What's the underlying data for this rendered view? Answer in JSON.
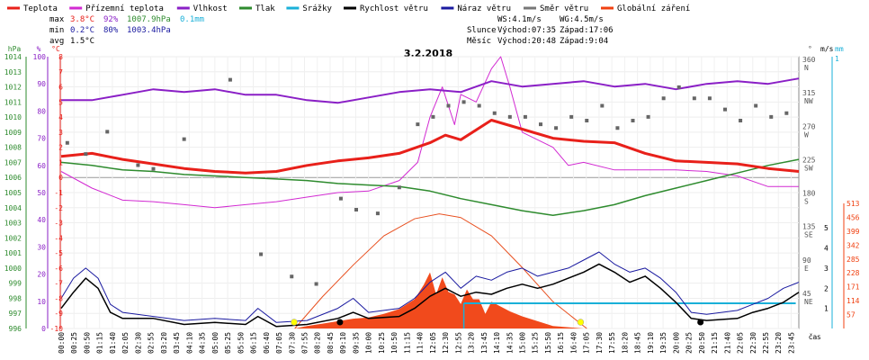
{
  "chart_data": {
    "type": "line",
    "title": "3.2.2018",
    "legend": [
      {
        "name": "Teplota",
        "color": "#e8201a"
      },
      {
        "name": "Přízemní teplota",
        "color": "#d22ad2"
      },
      {
        "name": "Vlhkost",
        "color": "#8a1fc6"
      },
      {
        "name": "Tlak",
        "color": "#2e8b2e"
      },
      {
        "name": "Srážky",
        "color": "#1ab0d8"
      },
      {
        "name": "Rychlost větru",
        "color": "#000000"
      },
      {
        "name": "Náraz větru",
        "color": "#1a1aa0"
      },
      {
        "name": "Směr větru",
        "color": "#777777"
      },
      {
        "name": "Globální záření",
        "color": "#f04010"
      }
    ],
    "stats": {
      "max": {
        "label": "max",
        "temp": "3.8°C",
        "hum": "92%",
        "press": "1007.9hPa",
        "rain": "0.1mm"
      },
      "min": {
        "label": "min",
        "temp": "0.2°C",
        "hum": "80%",
        "press": "1003.4hPa"
      },
      "avg": {
        "label": "avg",
        "temp": "1.5°C"
      }
    },
    "info": {
      "ws": "WS:4.1m/s",
      "wg": "WG:4.5m/s",
      "sun_label": "Slunce",
      "sun_rise": "Východ:07:35",
      "sun_set": "Západ:17:06",
      "moon_label": "Měsíc",
      "moon_rise": "Východ:20:48",
      "moon_set": "Západ:9:04"
    },
    "axes_left": [
      {
        "unit": "hPa",
        "color": "#2e8b2e",
        "ticks": [
          "1014",
          "1013",
          "1012",
          "1011",
          "1010",
          "1009",
          "1008",
          "1007",
          "1006",
          "1005",
          "1004",
          "1003",
          "1002",
          "1001",
          "1000",
          "999",
          "998",
          "997",
          "996"
        ]
      },
      {
        "unit": "%",
        "color": "#8a1fc6",
        "ticks": [
          "100",
          "90",
          "80",
          "70",
          "60",
          "50",
          "40",
          "30",
          "20",
          "10",
          "0"
        ]
      },
      {
        "unit": "°C",
        "color": "#e8201a",
        "ticks": [
          "8",
          "7",
          "6",
          "5",
          "4",
          "3",
          "2",
          "1",
          "0",
          "-1",
          "-2",
          "-3",
          "-4",
          "-5",
          "-6",
          "-7",
          "-8",
          "-9",
          "-10"
        ]
      }
    ],
    "axes_right": [
      {
        "unit": "°",
        "color": "#555555",
        "ticks": [
          "360",
          "315",
          "270",
          "225",
          "180",
          "135",
          "90",
          "45"
        ],
        "dir_labels": [
          "N",
          "NW",
          "W",
          "SW",
          "S",
          "SE",
          "E",
          "NE"
        ]
      },
      {
        "unit": "m/s",
        "color": "#000000",
        "ticks": [
          "5",
          "4",
          "3",
          "2",
          "1"
        ]
      },
      {
        "unit": "mm",
        "color": "#1ab0d8",
        "ticks": [
          "1"
        ]
      },
      {
        "unit": "W/m²",
        "color": "#f04010",
        "ticks": [
          "513",
          "456",
          "399",
          "342",
          "285",
          "228",
          "171",
          "114",
          "57"
        ]
      }
    ],
    "x_ticks": [
      "00:00",
      "00:25",
      "00:50",
      "01:15",
      "01:40",
      "02:05",
      "02:30",
      "02:55",
      "03:20",
      "03:45",
      "04:10",
      "04:35",
      "05:00",
      "05:25",
      "05:50",
      "06:15",
      "06:40",
      "07:05",
      "07:30",
      "07:55",
      "08:20",
      "08:45",
      "09:10",
      "09:35",
      "10:00",
      "10:25",
      "10:50",
      "11:15",
      "11:40",
      "12:05",
      "12:30",
      "12:55",
      "13:20",
      "13:45",
      "14:10",
      "14:35",
      "15:00",
      "15:25",
      "15:50",
      "16:15",
      "16:40",
      "17:05",
      "17:30",
      "17:55",
      "18:20",
      "18:45",
      "19:10",
      "19:35",
      "20:00",
      "20:25",
      "20:50",
      "21:15",
      "21:40",
      "22:05",
      "22:30",
      "22:55",
      "23:20",
      "23:45"
    ],
    "x_label": "čas",
    "series": {
      "temperature": {
        "hours": [
          0,
          1,
          2,
          3,
          4,
          5,
          6,
          7,
          8,
          9,
          10,
          11,
          12,
          12.5,
          13,
          14,
          15,
          16,
          17,
          18,
          19,
          20,
          21,
          22,
          23,
          24
        ],
        "values": [
          1.4,
          1.6,
          1.2,
          0.9,
          0.6,
          0.4,
          0.3,
          0.4,
          0.8,
          1.1,
          1.3,
          1.6,
          2.3,
          2.8,
          2.5,
          3.8,
          3.2,
          2.6,
          2.4,
          2.3,
          1.6,
          1.1,
          1.0,
          0.9,
          0.6,
          0.4
        ]
      },
      "humidity": {
        "hours": [
          0,
          1,
          2,
          3,
          4,
          5,
          6,
          7,
          8,
          9,
          10,
          11,
          12,
          13,
          14,
          15,
          16,
          17,
          18,
          19,
          20,
          21,
          22,
          23,
          24
        ],
        "values": [
          84,
          84,
          86,
          88,
          87,
          88,
          86,
          86,
          84,
          83,
          85,
          87,
          88,
          87,
          91,
          89,
          90,
          91,
          89,
          90,
          88,
          90,
          91,
          90,
          92
        ]
      },
      "pressure": {
        "hours": [
          0,
          1,
          2,
          3,
          4,
          5,
          6,
          7,
          8,
          9,
          10,
          11,
          12,
          13,
          14,
          15,
          16,
          17,
          18,
          19,
          20,
          21,
          22,
          23,
          24
        ],
        "values": [
          1007.0,
          1006.8,
          1006.5,
          1006.4,
          1006.2,
          1006.1,
          1006.0,
          1005.9,
          1005.8,
          1005.6,
          1005.5,
          1005.4,
          1005.1,
          1004.6,
          1004.2,
          1003.8,
          1003.5,
          1003.8,
          1004.2,
          1004.8,
          1005.3,
          1005.8,
          1006.3,
          1006.8,
          1007.2
        ]
      },
      "ground_temperature": {
        "hours": [
          0,
          1,
          2,
          3,
          4,
          5,
          6,
          7,
          8,
          9,
          10,
          11,
          11.6,
          12,
          12.4,
          12.8,
          13,
          13.5,
          14,
          14.3,
          14.6,
          15,
          16,
          16.5,
          17,
          18,
          19,
          20,
          21,
          22,
          23,
          24
        ],
        "values": [
          0.4,
          -0.7,
          -1.5,
          -1.6,
          -1.8,
          -2.0,
          -1.8,
          -1.6,
          -1.3,
          -1.0,
          -0.9,
          -0.2,
          1.0,
          4.0,
          6.0,
          3.5,
          5.5,
          5.0,
          7.2,
          8.0,
          6.0,
          3.0,
          2.0,
          0.8,
          1.0,
          0.5,
          0.5,
          0.5,
          0.4,
          0.1,
          -0.6,
          -0.6
        ]
      },
      "wind_speed": {
        "hours": [
          0,
          0.4,
          0.8,
          1.2,
          1.6,
          2,
          3,
          4,
          5,
          6,
          6.4,
          7,
          8,
          9,
          9.5,
          10,
          11,
          11.5,
          12,
          12.5,
          13,
          13.5,
          14,
          14.5,
          15,
          15.5,
          16,
          16.5,
          17,
          17.5,
          18,
          18.5,
          19,
          19.5,
          20,
          20.5,
          21,
          22,
          22.5,
          23,
          23.5,
          24
        ],
        "values": [
          1.0,
          1.8,
          2.5,
          2.0,
          0.8,
          0.5,
          0.5,
          0.2,
          0.3,
          0.2,
          0.6,
          0.1,
          0.2,
          0.5,
          0.8,
          0.5,
          0.6,
          1.0,
          1.6,
          2.0,
          1.6,
          1.8,
          1.7,
          2.0,
          2.2,
          2.0,
          2.2,
          2.5,
          2.8,
          3.2,
          2.8,
          2.3,
          2.6,
          2.0,
          1.3,
          0.5,
          0.4,
          0.5,
          0.8,
          1.0,
          1.3,
          1.8
        ]
      },
      "wind_gust": {
        "hours": [
          0,
          0.4,
          0.8,
          1.2,
          1.6,
          2,
          3,
          4,
          5,
          6,
          6.4,
          7,
          8,
          9,
          9.5,
          10,
          11,
          11.5,
          12,
          12.5,
          13,
          13.5,
          14,
          14.5,
          15,
          15.5,
          16,
          16.5,
          17,
          17.5,
          18,
          18.5,
          19,
          19.5,
          20,
          20.5,
          21,
          22,
          22.5,
          23,
          23.5,
          24
        ],
        "values": [
          1.5,
          2.5,
          3.0,
          2.5,
          1.2,
          0.8,
          0.6,
          0.4,
          0.5,
          0.4,
          1.0,
          0.3,
          0.4,
          1.0,
          1.5,
          0.8,
          1.0,
          1.5,
          2.3,
          2.8,
          2.0,
          2.6,
          2.4,
          2.8,
          3.0,
          2.6,
          2.8,
          3.0,
          3.4,
          3.8,
          3.2,
          2.8,
          3.0,
          2.5,
          1.8,
          0.8,
          0.7,
          0.9,
          1.2,
          1.5,
          2.0,
          2.3
        ]
      },
      "wind_direction": {
        "hours": [
          0.2,
          0.8,
          1.5,
          2.5,
          3.0,
          4.0,
          5.5,
          6.5,
          7.5,
          8.3,
          9.1,
          9.6,
          10.3,
          11.0,
          11.6,
          12.1,
          12.6,
          13.1,
          13.6,
          14.1,
          14.6,
          15.1,
          15.6,
          16.1,
          16.6,
          17.1,
          17.6,
          18.1,
          18.6,
          19.1,
          19.6,
          20.1,
          20.6,
          21.1,
          21.6,
          22.1,
          22.6,
          23.1,
          23.6
        ],
        "values": [
          250,
          235,
          265,
          220,
          215,
          255,
          335,
          100,
          70,
          60,
          175,
          160,
          155,
          190,
          275,
          285,
          300,
          305,
          300,
          290,
          285,
          285,
          275,
          270,
          285,
          280,
          300,
          270,
          280,
          285,
          310,
          325,
          310,
          310,
          295,
          280,
          300,
          285,
          290
        ]
      },
      "radiation": {
        "hours": [
          7.6,
          8,
          8.5,
          9,
          9.5,
          10,
          10.5,
          11,
          11.5,
          11.8,
          12,
          12.2,
          12.4,
          12.6,
          12.8,
          13,
          13.2,
          13.4,
          13.6,
          13.8,
          14,
          14.3,
          14.6,
          15,
          15.5,
          16,
          16.5,
          17
        ],
        "values": [
          0,
          10,
          20,
          30,
          40,
          45,
          60,
          80,
          120,
          180,
          230,
          140,
          210,
          150,
          140,
          100,
          160,
          120,
          120,
          60,
          110,
          90,
          70,
          50,
          30,
          10,
          5,
          0
        ]
      },
      "radiation_theoretical": {
        "hours": [
          7.6,
          8.5,
          9.5,
          10.5,
          11.5,
          12.3,
          13,
          14,
          15,
          16,
          17.1
        ],
        "values": [
          0,
          130,
          260,
          380,
          450,
          470,
          455,
          380,
          250,
          110,
          0
        ]
      },
      "precipitation": {
        "hours": [
          13.1,
          23.9
        ],
        "values": [
          0.1,
          0.1
        ]
      }
    }
  }
}
